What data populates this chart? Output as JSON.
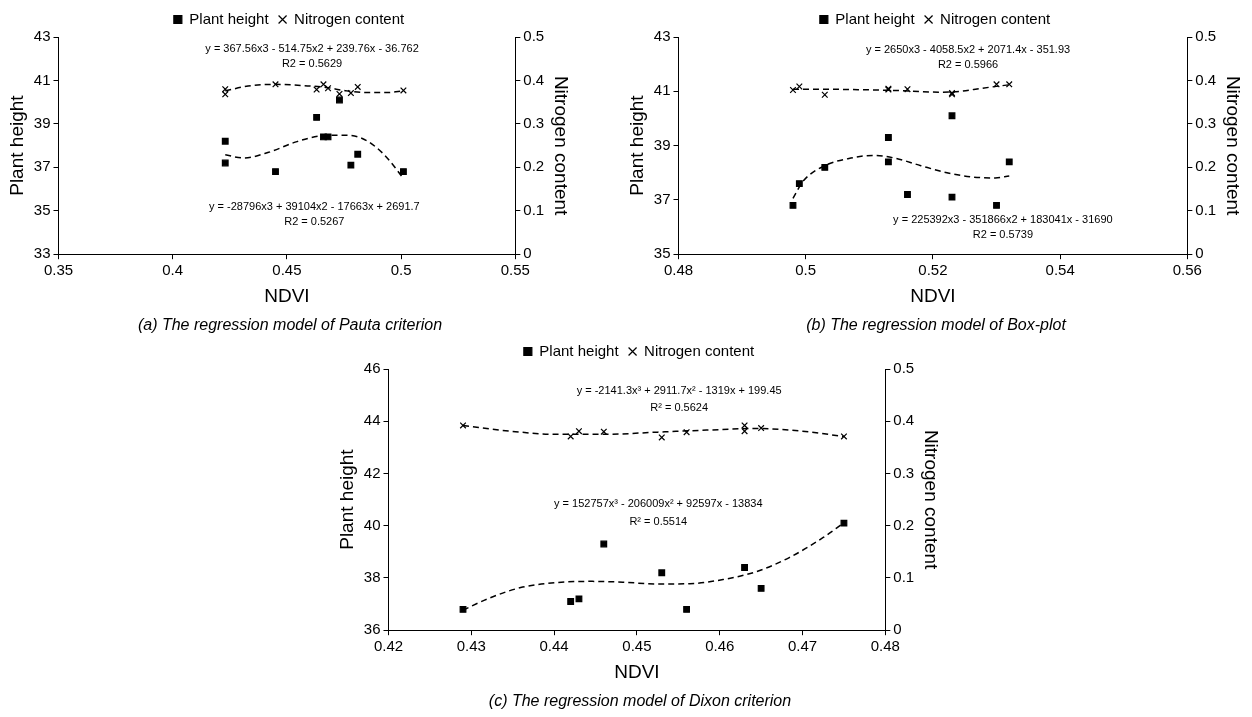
{
  "chart_data": [
    {
      "type": "scatter",
      "title": "(a) The regression model of Pauta criterion",
      "xlabel": "NDVI",
      "ylabel": "Plant height",
      "y2label": "Nitrogen content",
      "xlim": [
        0.35,
        0.55
      ],
      "xticks": [
        0.35,
        0.4,
        0.45,
        0.5,
        0.55
      ],
      "ylim": [
        33,
        43
      ],
      "yticks": [
        33,
        35,
        37,
        39,
        41,
        43
      ],
      "y2lim": [
        0,
        0.5
      ],
      "y2ticks": [
        0,
        0.1,
        0.2,
        0.3,
        0.4,
        0.5
      ],
      "legend": "top",
      "grid": false,
      "series": [
        {
          "name": "Plant height",
          "color": "#000000",
          "marker": "square",
          "x": [
            0.423,
            0.423,
            0.445,
            0.463,
            0.466,
            0.468,
            0.473,
            0.478,
            0.481,
            0.501
          ],
          "values": [
            38.2,
            37.2,
            36.8,
            39.3,
            38.4,
            38.4,
            40.1,
            37.1,
            37.6,
            36.8
          ]
        },
        {
          "name": "Nitrogen content",
          "color": "#000000",
          "marker": "cross",
          "axis": "y2",
          "x": [
            0.423,
            0.423,
            0.445,
            0.463,
            0.466,
            0.468,
            0.473,
            0.478,
            0.481,
            0.501
          ],
          "values": [
            0.38,
            0.368,
            0.391,
            0.379,
            0.391,
            0.382,
            0.369,
            0.371,
            0.385,
            0.377
          ]
        },
        {
          "type": "line",
          "color": "#000000",
          "line_style": "dashed",
          "marker": "none",
          "x": [
            0.423,
            0.431,
            0.442,
            0.454,
            0.465,
            0.474,
            0.482,
            0.489,
            0.495,
            0.501
          ],
          "values": [
            37.58,
            37.43,
            37.69,
            38.17,
            38.45,
            38.48,
            38.37,
            37.93,
            37.3,
            36.48
          ]
        },
        {
          "type": "line",
          "color": "#000000",
          "line_style": "dashed",
          "marker": "none",
          "axis": "y2",
          "x": [
            0.423,
            0.433,
            0.445,
            0.457,
            0.467,
            0.476,
            0.485,
            0.494,
            0.501
          ],
          "values": [
            0.376,
            0.387,
            0.391,
            0.388,
            0.384,
            0.376,
            0.372,
            0.372,
            0.376
          ]
        }
      ],
      "annotations": [
        "y = 367.56x3 - 514.75x2 + 239.76x - 36.762",
        "R2 = 0.5629",
        "y = -28796x3 + 39104x2 - 17663x + 2691.7",
        "R2 = 0.5267"
      ]
    },
    {
      "type": "scatter",
      "title": "(b) The regression model of Box-plot",
      "xlabel": "NDVI",
      "ylabel": "Plant height",
      "y2label": "Nitrogen content",
      "xlim": [
        0.48,
        0.56
      ],
      "xticks": [
        0.48,
        0.5,
        0.52,
        0.54,
        0.56
      ],
      "ylim": [
        35,
        43
      ],
      "yticks": [
        35,
        37,
        39,
        41,
        43
      ],
      "y2lim": [
        0,
        0.5
      ],
      "y2ticks": [
        0,
        0.1,
        0.2,
        0.3,
        0.4,
        0.5
      ],
      "legend": "top",
      "grid": false,
      "series": [
        {
          "name": "Plant height",
          "color": "#000000",
          "marker": "square",
          "x": [
            0.498,
            0.499,
            0.503,
            0.513,
            0.513,
            0.516,
            0.523,
            0.523,
            0.53,
            0.532
          ],
          "values": [
            36.8,
            37.6,
            38.2,
            39.3,
            38.4,
            37.2,
            40.1,
            37.1,
            36.8,
            38.4
          ]
        },
        {
          "name": "Nitrogen content",
          "color": "#000000",
          "marker": "cross",
          "axis": "y2",
          "x": [
            0.498,
            0.499,
            0.503,
            0.513,
            0.513,
            0.516,
            0.523,
            0.523,
            0.53,
            0.532
          ],
          "values": [
            0.378,
            0.386,
            0.367,
            0.379,
            0.381,
            0.38,
            0.371,
            0.368,
            0.391,
            0.391
          ]
        },
        {
          "type": "line",
          "color": "#000000",
          "line_style": "dashed",
          "marker": "none",
          "x": [
            0.498,
            0.4996,
            0.503,
            0.5071,
            0.5106,
            0.514,
            0.5181,
            0.5222,
            0.5264,
            0.5298,
            0.532
          ],
          "values": [
            37.06,
            37.69,
            38.26,
            38.54,
            38.64,
            38.54,
            38.26,
            38.0,
            37.84,
            37.81,
            37.88
          ]
        },
        {
          "type": "line",
          "color": "#000000",
          "line_style": "dashed",
          "marker": "none",
          "axis": "y2",
          "x": [
            0.498,
            0.5016,
            0.5071,
            0.514,
            0.5209,
            0.5243,
            0.5277,
            0.532
          ],
          "values": [
            0.38,
            0.38,
            0.379,
            0.377,
            0.373,
            0.375,
            0.382,
            0.39
          ]
        }
      ],
      "annotations": [
        "y = 2650x3 - 4058.5x2 + 2071.4x - 351.93",
        "R2 = 0.5966",
        "y = 225392x3 - 351866x2 + 183041x - 31690",
        "R2 = 0.5739"
      ]
    },
    {
      "type": "scatter",
      "title": "(c) The regression model of Dixon criterion",
      "xlabel": "NDVI",
      "ylabel": "Plant height",
      "y2label": "Nitrogen content",
      "xlim": [
        0.42,
        0.48
      ],
      "xticks": [
        0.42,
        0.43,
        0.44,
        0.45,
        0.46,
        0.47,
        0.48
      ],
      "ylim": [
        36,
        46
      ],
      "yticks": [
        36,
        38,
        40,
        42,
        44,
        46
      ],
      "y2lim": [
        0,
        0.5
      ],
      "y2ticks": [
        0,
        0.1,
        0.2,
        0.3,
        0.4,
        0.5
      ],
      "legend": "top",
      "grid": false,
      "series": [
        {
          "name": "Plant height",
          "color": "#000000",
          "marker": "square",
          "x": [
            0.429,
            0.442,
            0.443,
            0.446,
            0.453,
            0.456,
            0.463,
            0.465,
            0.475
          ],
          "values": [
            36.8,
            37.1,
            37.2,
            39.3,
            38.2,
            36.8,
            38.4,
            37.6,
            40.1
          ]
        },
        {
          "name": "Nitrogen content",
          "color": "#000000",
          "marker": "cross",
          "axis": "y2",
          "x": [
            0.429,
            0.442,
            0.443,
            0.446,
            0.453,
            0.456,
            0.463,
            0.463,
            0.465,
            0.475
          ],
          "values": [
            0.392,
            0.371,
            0.381,
            0.38,
            0.369,
            0.379,
            0.392,
            0.381,
            0.387,
            0.371
          ]
        },
        {
          "type": "line",
          "color": "#000000",
          "line_style": "dashed",
          "marker": "none",
          "x": [
            0.429,
            0.4322,
            0.4362,
            0.4403,
            0.4443,
            0.4483,
            0.4523,
            0.4564,
            0.4604,
            0.4644,
            0.4684,
            0.4725,
            0.4749
          ],
          "values": [
            36.77,
            37.23,
            37.65,
            37.82,
            37.87,
            37.84,
            37.77,
            37.78,
            37.94,
            38.24,
            38.78,
            39.55,
            40.09
          ]
        },
        {
          "type": "line",
          "color": "#000000",
          "line_style": "dashed",
          "marker": "none",
          "axis": "y2",
          "x": [
            0.429,
            0.4347,
            0.4403,
            0.4463,
            0.4523,
            0.4584,
            0.4644,
            0.47,
            0.4749
          ],
          "values": [
            0.392,
            0.381,
            0.375,
            0.375,
            0.379,
            0.383,
            0.386,
            0.381,
            0.371
          ]
        }
      ],
      "annotations": [
        "y = -2141.3x³ + 2911.7x² - 1319x + 199.45",
        "R² = 0.5624",
        "y = 152757x³ - 206009x² + 92597x - 13834",
        "R² = 0.5514"
      ]
    }
  ]
}
